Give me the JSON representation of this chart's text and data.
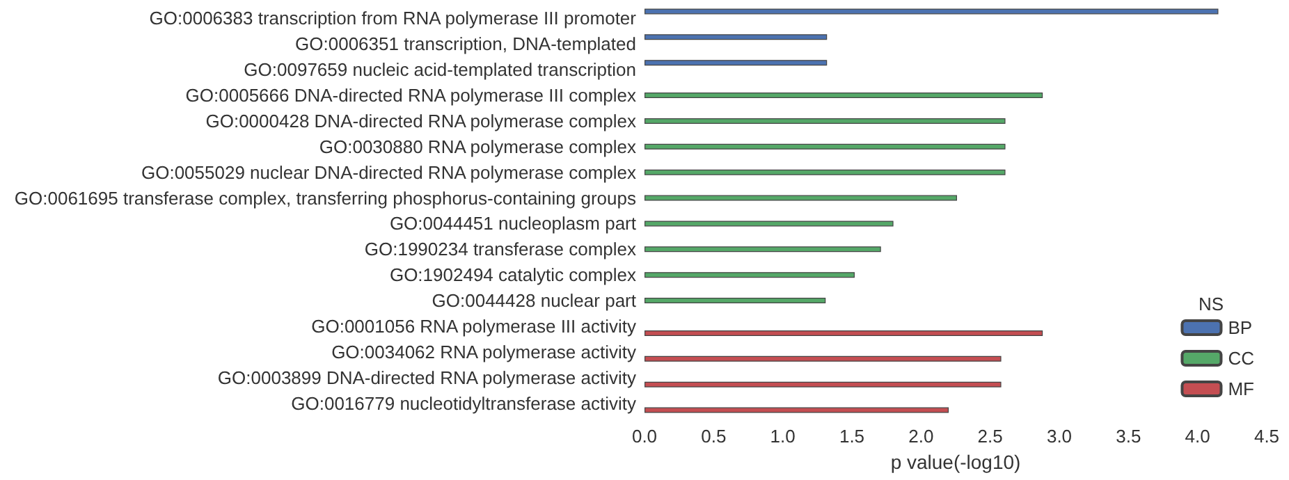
{
  "chart_data": {
    "type": "bar",
    "orientation": "horizontal",
    "xlabel": "p value(-log10)",
    "legend_title": "NS",
    "legend": "bottom right",
    "grid": false,
    "categories": [
      "GO:0006383 transcription from RNA polymerase III promoter",
      "GO:0006351 transcription, DNA-templated",
      "GO:0097659 nucleic acid-templated transcription",
      "GO:0005666 DNA-directed RNA polymerase III complex",
      "GO:0000428 DNA-directed RNA polymerase complex",
      "GO:0030880 RNA polymerase complex",
      "GO:0055029 nuclear DNA-directed RNA polymerase complex",
      "GO:0061695 transferase complex, transferring phosphorus-containing groups",
      "GO:0044451 nucleoplasm part",
      "GO:1990234 transferase complex",
      "GO:1902494 catalytic complex",
      "GO:0044428 nuclear part",
      "GO:0001056 RNA polymerase III activity",
      "GO:0034062 RNA polymerase activity",
      "GO:0003899 DNA-directed RNA polymerase activity",
      "GO:0016779 nucleotidyltransferase activity"
    ],
    "series": [
      {
        "name": "BP",
        "color": "#4c72b0",
        "values": [
          4.15,
          1.32,
          1.32,
          null,
          null,
          null,
          null,
          null,
          null,
          null,
          null,
          null,
          null,
          null,
          null,
          null
        ]
      },
      {
        "name": "CC",
        "color": "#55a868",
        "values": [
          null,
          null,
          null,
          2.88,
          2.61,
          2.61,
          2.61,
          2.26,
          1.8,
          1.71,
          1.52,
          1.31,
          null,
          null,
          null,
          null
        ]
      },
      {
        "name": "MF",
        "color": "#c44e52",
        "values": [
          null,
          null,
          null,
          null,
          null,
          null,
          null,
          null,
          null,
          null,
          null,
          null,
          2.88,
          2.58,
          2.58,
          2.2
        ]
      }
    ],
    "xlim": [
      0,
      4.5
    ],
    "xticks": [
      {
        "value": 0,
        "label": "0.0"
      },
      0.5,
      {
        "value": 1,
        "label": "1.0"
      },
      1.5,
      {
        "value": 2,
        "label": "2.0"
      },
      2.5,
      {
        "value": 3,
        "label": "3.0"
      },
      3.5,
      {
        "value": 4,
        "label": "4.0"
      },
      4.5
    ]
  }
}
